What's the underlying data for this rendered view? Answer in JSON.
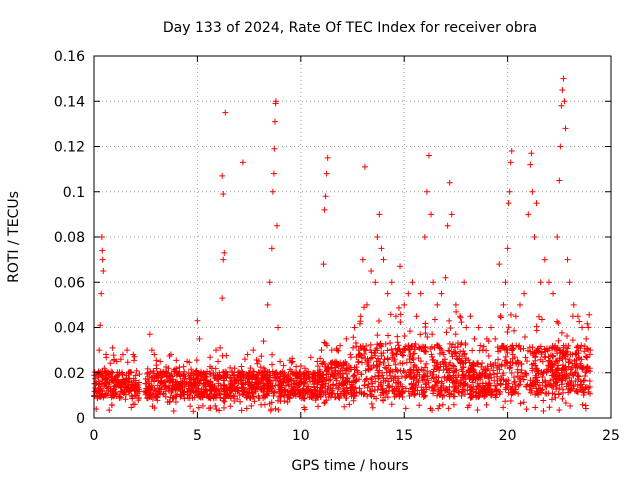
{
  "chart_data": {
    "type": "scatter",
    "title": "Day 133 of 2024, Rate Of TEC Index for receiver obra",
    "xlabel": "GPS time / hours",
    "ylabel": "ROTI / TECUs",
    "xlim": [
      0,
      25
    ],
    "ylim": [
      0,
      0.16
    ],
    "xticks": [
      0,
      5,
      10,
      15,
      20,
      25
    ],
    "xtick_labels": [
      "0",
      "5",
      "10",
      "15",
      "20",
      "25"
    ],
    "yticks": [
      0,
      0.02,
      0.04,
      0.06,
      0.08,
      0.1,
      0.12,
      0.14,
      0.16
    ],
    "ytick_labels": [
      "0",
      "0.02",
      "0.04",
      "0.06",
      "0.08",
      "0.1",
      "0.12",
      "0.14",
      "0.16"
    ],
    "grid": true,
    "marker": "plus",
    "marker_color": "#ff0000",
    "series": [
      {
        "name": "ROTI",
        "points": [
          [
            0.1,
            0.012
          ],
          [
            0.2,
            0.018
          ],
          [
            0.25,
            0.03
          ],
          [
            0.3,
            0.041
          ],
          [
            0.35,
            0.055
          ],
          [
            0.38,
            0.08
          ],
          [
            0.4,
            0.074
          ],
          [
            0.42,
            0.07
          ],
          [
            0.45,
            0.065
          ],
          [
            0.5,
            0.022
          ],
          [
            0.6,
            0.015
          ],
          [
            0.7,
            0.02
          ],
          [
            0.8,
            0.013
          ],
          [
            0.9,
            0.031
          ],
          [
            1.0,
            0.011
          ],
          [
            1.1,
            0.025
          ],
          [
            1.2,
            0.016
          ],
          [
            1.3,
            0.009
          ],
          [
            1.4,
            0.028
          ],
          [
            1.5,
            0.014
          ],
          [
            1.6,
            0.03
          ],
          [
            1.7,
            0.012
          ],
          [
            1.8,
            0.02
          ],
          [
            1.9,
            0.028
          ],
          [
            2.0,
            0.01
          ],
          [
            2.5,
            0.012
          ],
          [
            2.6,
            0.02
          ],
          [
            2.7,
            0.037
          ],
          [
            2.8,
            0.03
          ],
          [
            3.0,
            0.018
          ],
          [
            3.2,
            0.025
          ],
          [
            3.4,
            0.014
          ],
          [
            3.6,
            0.022
          ],
          [
            3.8,
            0.016
          ],
          [
            4.0,
            0.02
          ],
          [
            4.2,
            0.012
          ],
          [
            4.5,
            0.025
          ],
          [
            4.7,
            0.018
          ],
          [
            4.8,
            0.003
          ],
          [
            5.0,
            0.043
          ],
          [
            5.1,
            0.035
          ],
          [
            5.3,
            0.02
          ],
          [
            5.5,
            0.015
          ],
          [
            5.7,
            0.022
          ],
          [
            5.9,
            0.03
          ],
          [
            6.0,
            0.025
          ],
          [
            6.1,
            0.031
          ],
          [
            6.2,
            0.053
          ],
          [
            6.25,
            0.07
          ],
          [
            6.3,
            0.073
          ],
          [
            6.35,
            0.135
          ],
          [
            6.2,
            0.107
          ],
          [
            6.25,
            0.099
          ],
          [
            6.4,
            0.02
          ],
          [
            6.6,
            0.015
          ],
          [
            6.8,
            0.022
          ],
          [
            7.0,
            0.018
          ],
          [
            7.2,
            0.113
          ],
          [
            7.3,
            0.026
          ],
          [
            7.5,
            0.02
          ],
          [
            7.7,
            0.03
          ],
          [
            7.9,
            0.024
          ],
          [
            8.0,
            0.016
          ],
          [
            8.2,
            0.034
          ],
          [
            8.4,
            0.05
          ],
          [
            8.5,
            0.06
          ],
          [
            8.6,
            0.075
          ],
          [
            8.65,
            0.1
          ],
          [
            8.7,
            0.108
          ],
          [
            8.72,
            0.119
          ],
          [
            8.75,
            0.131
          ],
          [
            8.78,
            0.139
          ],
          [
            8.8,
            0.14
          ],
          [
            8.85,
            0.085
          ],
          [
            8.9,
            0.04
          ],
          [
            9.0,
            0.025
          ],
          [
            9.2,
            0.02
          ],
          [
            9.4,
            0.015
          ],
          [
            9.6,
            0.025
          ],
          [
            9.8,
            0.02
          ],
          [
            10.0,
            0.015
          ],
          [
            10.2,
            0.022
          ],
          [
            10.4,
            0.018
          ],
          [
            10.6,
            0.02
          ],
          [
            10.8,
            0.025
          ],
          [
            11.0,
            0.03
          ],
          [
            11.1,
            0.068
          ],
          [
            11.15,
            0.092
          ],
          [
            11.2,
            0.098
          ],
          [
            11.25,
            0.108
          ],
          [
            11.3,
            0.115
          ],
          [
            11.5,
            0.03
          ],
          [
            11.7,
            0.025
          ],
          [
            11.9,
            0.032
          ],
          [
            12.0,
            0.022
          ],
          [
            12.2,
            0.035
          ],
          [
            12.4,
            0.028
          ],
          [
            12.6,
            0.04
          ],
          [
            12.8,
            0.03
          ],
          [
            12.9,
            0.045
          ],
          [
            13.0,
            0.07
          ],
          [
            13.1,
            0.111
          ],
          [
            13.2,
            0.05
          ],
          [
            13.4,
            0.065
          ],
          [
            13.6,
            0.06
          ],
          [
            13.7,
            0.08
          ],
          [
            13.8,
            0.09
          ],
          [
            13.9,
            0.075
          ],
          [
            14.0,
            0.07
          ],
          [
            14.2,
            0.055
          ],
          [
            14.4,
            0.06
          ],
          [
            14.6,
            0.045
          ],
          [
            14.8,
            0.067
          ],
          [
            15.0,
            0.05
          ],
          [
            15.2,
            0.055
          ],
          [
            15.4,
            0.06
          ],
          [
            15.6,
            0.045
          ],
          [
            15.8,
            0.055
          ],
          [
            16.0,
            0.08
          ],
          [
            16.1,
            0.1
          ],
          [
            16.2,
            0.116
          ],
          [
            16.3,
            0.09
          ],
          [
            16.4,
            0.06
          ],
          [
            16.6,
            0.05
          ],
          [
            16.8,
            0.055
          ],
          [
            17.0,
            0.062
          ],
          [
            17.1,
            0.085
          ],
          [
            17.2,
            0.104
          ],
          [
            17.3,
            0.09
          ],
          [
            17.5,
            0.05
          ],
          [
            17.7,
            0.045
          ],
          [
            17.9,
            0.06
          ],
          [
            18.0,
            0.04
          ],
          [
            18.2,
            0.045
          ],
          [
            18.4,
            0.035
          ],
          [
            18.6,
            0.04
          ],
          [
            18.8,
            0.03
          ],
          [
            19.0,
            0.035
          ],
          [
            19.2,
            0.04
          ],
          [
            19.4,
            0.035
          ],
          [
            19.6,
            0.068
          ],
          [
            19.8,
            0.05
          ],
          [
            19.9,
            0.06
          ],
          [
            20.0,
            0.075
          ],
          [
            20.05,
            0.095
          ],
          [
            20.1,
            0.1
          ],
          [
            20.15,
            0.113
          ],
          [
            20.2,
            0.118
          ],
          [
            20.4,
            0.045
          ],
          [
            20.6,
            0.05
          ],
          [
            20.8,
            0.055
          ],
          [
            21.0,
            0.09
          ],
          [
            21.1,
            0.112
          ],
          [
            21.15,
            0.117
          ],
          [
            21.2,
            0.1
          ],
          [
            21.3,
            0.08
          ],
          [
            21.4,
            0.095
          ],
          [
            21.6,
            0.06
          ],
          [
            21.8,
            0.07
          ],
          [
            22.0,
            0.06
          ],
          [
            22.2,
            0.055
          ],
          [
            22.4,
            0.08
          ],
          [
            22.5,
            0.105
          ],
          [
            22.55,
            0.12
          ],
          [
            22.6,
            0.138
          ],
          [
            22.65,
            0.145
          ],
          [
            22.7,
            0.15
          ],
          [
            22.75,
            0.14
          ],
          [
            22.8,
            0.128
          ],
          [
            22.9,
            0.07
          ],
          [
            23.0,
            0.06
          ],
          [
            23.2,
            0.05
          ],
          [
            23.4,
            0.045
          ],
          [
            23.6,
            0.04
          ],
          [
            23.8,
            0.035
          ],
          [
            23.9,
            0.04
          ],
          [
            24.0,
            0.03
          ]
        ]
      }
    ]
  }
}
